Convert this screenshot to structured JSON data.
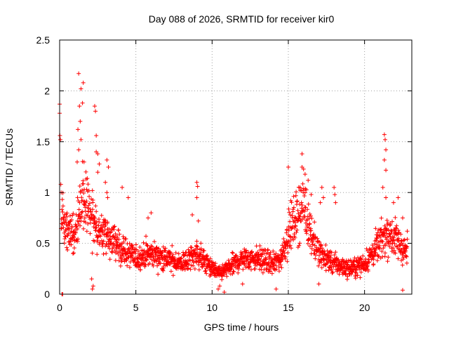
{
  "chart_data": {
    "type": "scatter",
    "title": "Day 088 of 2026, SRMTID for receiver kir0",
    "xlabel": "GPS time / hours",
    "ylabel": "SRMTID / TECUs",
    "xlim": [
      0,
      23.1
    ],
    "ylim": [
      0,
      2.5
    ],
    "xticks": [
      0,
      5,
      10,
      15,
      20
    ],
    "xtick_labels": [
      "0",
      "5",
      "10",
      "15",
      "20"
    ],
    "yticks": [
      0,
      0.5,
      1,
      1.5,
      2,
      2.5
    ],
    "ytick_labels": [
      "0",
      "0.5",
      "1",
      "1.5",
      "2",
      "2.5"
    ],
    "grid": true,
    "marker": "plus",
    "series": [
      {
        "name": "SRMTID",
        "color": "#ff0000",
        "profile_description": "piecewise-linear envelope of the dense point cloud (hour, typical SRMTID)",
        "envelope": [
          [
            0,
            0.75
          ],
          [
            0.5,
            0.65
          ],
          [
            1,
            0.6
          ],
          [
            1.5,
            0.95
          ],
          [
            2,
            0.8
          ],
          [
            2.5,
            0.6
          ],
          [
            3,
            0.6
          ],
          [
            4,
            0.45
          ],
          [
            5,
            0.35
          ],
          [
            6,
            0.4
          ],
          [
            7,
            0.35
          ],
          [
            8,
            0.3
          ],
          [
            9,
            0.4
          ],
          [
            10,
            0.25
          ],
          [
            10.5,
            0.2
          ],
          [
            11,
            0.25
          ],
          [
            12,
            0.35
          ],
          [
            13,
            0.35
          ],
          [
            14,
            0.3
          ],
          [
            14.5,
            0.35
          ],
          [
            15,
            0.6
          ],
          [
            15.5,
            0.75
          ],
          [
            16,
            0.9
          ],
          [
            16.5,
            0.6
          ],
          [
            17,
            0.4
          ],
          [
            18,
            0.3
          ],
          [
            19,
            0.25
          ],
          [
            20,
            0.3
          ],
          [
            20.5,
            0.4
          ],
          [
            21,
            0.5
          ],
          [
            21.5,
            0.6
          ],
          [
            22,
            0.55
          ],
          [
            22.8,
            0.4
          ]
        ],
        "points": [
          [
            0.0,
            1.87
          ],
          [
            0.0,
            1.78
          ],
          [
            0.02,
            1.56
          ],
          [
            0.05,
            1.52
          ],
          [
            0.08,
            1.08
          ],
          [
            0.1,
            1.0
          ],
          [
            0.15,
            0.0
          ],
          [
            0.2,
            0.0
          ],
          [
            1.25,
            2.17
          ],
          [
            1.4,
            2.02
          ],
          [
            1.5,
            1.88
          ],
          [
            1.55,
            2.08
          ],
          [
            1.3,
            1.85
          ],
          [
            1.2,
            1.62
          ],
          [
            1.4,
            1.52
          ],
          [
            1.25,
            1.42
          ],
          [
            1.6,
            1.3
          ],
          [
            1.35,
            1.7
          ],
          [
            1.15,
            1.3
          ],
          [
            2.3,
            1.85
          ],
          [
            2.35,
            1.8
          ],
          [
            2.4,
            1.56
          ],
          [
            2.4,
            1.4
          ],
          [
            2.5,
            1.38
          ],
          [
            2.6,
            1.28
          ],
          [
            2.5,
            1.2
          ],
          [
            3.1,
            1.32
          ],
          [
            3.2,
            1.25
          ],
          [
            3.0,
            1.1
          ],
          [
            3.1,
            1.0
          ],
          [
            3.15,
            0.95
          ],
          [
            2.1,
            0.15
          ],
          [
            2.2,
            0.08
          ],
          [
            2.15,
            0.05
          ],
          [
            3.3,
            0.52
          ],
          [
            4.1,
            1.05
          ],
          [
            4.5,
            0.95
          ],
          [
            6.0,
            0.8
          ],
          [
            5.8,
            0.75
          ],
          [
            9.0,
            1.1
          ],
          [
            9.05,
            1.06
          ],
          [
            9.0,
            0.95
          ],
          [
            9.1,
            0.72
          ],
          [
            8.7,
            0.78
          ],
          [
            15.0,
            1.25
          ],
          [
            15.9,
            1.38
          ],
          [
            16.0,
            1.23
          ],
          [
            16.1,
            1.18
          ],
          [
            16.3,
            1.12
          ],
          [
            15.7,
            1.05
          ],
          [
            16.5,
            0.98
          ],
          [
            17.2,
            1.05
          ],
          [
            17.3,
            0.95
          ],
          [
            17.1,
            0.9
          ],
          [
            18.0,
            1.05
          ],
          [
            18.05,
            0.98
          ],
          [
            18.1,
            0.9
          ],
          [
            21.3,
            1.57
          ],
          [
            21.35,
            1.52
          ],
          [
            21.4,
            1.42
          ],
          [
            21.3,
            1.32
          ],
          [
            21.4,
            1.22
          ],
          [
            21.2,
            1.05
          ],
          [
            21.4,
            0.95
          ],
          [
            21.9,
            0.9
          ],
          [
            22.2,
            0.95
          ],
          [
            22.5,
            0.75
          ],
          [
            22.8,
            0.62
          ],
          [
            10.4,
            0.05
          ],
          [
            10.5,
            0.08
          ],
          [
            10.8,
            0.02
          ],
          [
            12.0,
            0.1
          ],
          [
            14.2,
            0.05
          ],
          [
            17.0,
            0.1
          ],
          [
            22.5,
            0.04
          ]
        ]
      }
    ]
  }
}
